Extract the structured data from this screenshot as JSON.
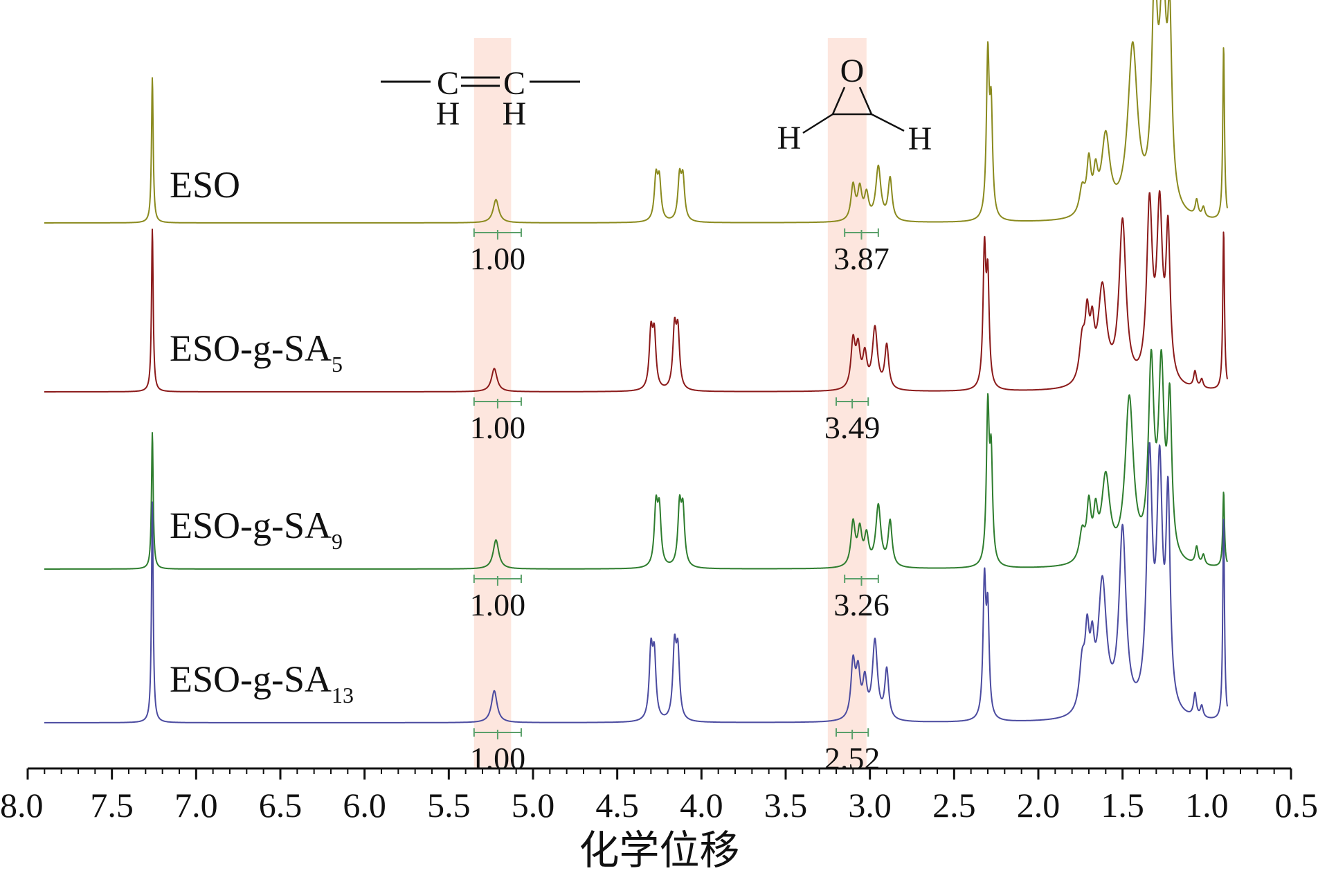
{
  "chart_data": {
    "type": "line",
    "title": "",
    "xlabel": "化学位移",
    "ylabel": "",
    "x_axis": {
      "min": 0.5,
      "max": 8.0,
      "reversed": true,
      "ticks": [
        8.0,
        7.5,
        7.0,
        6.5,
        6.0,
        5.5,
        5.0,
        4.5,
        4.0,
        3.5,
        3.0,
        2.5,
        2.0,
        1.5,
        1.0,
        0.5
      ],
      "tick_labels": [
        "8.0",
        "7.5",
        "7.0",
        "6.5",
        "6.0",
        "5.5",
        "5.0",
        "4.5",
        "4.0",
        "3.5",
        "3.0",
        "2.5",
        "2.0",
        "1.5",
        "1.0",
        "0.5"
      ]
    },
    "grid": false,
    "legend": "none",
    "highlight_bands": [
      {
        "from": 5.13,
        "to": 5.35,
        "color": "#fde6de"
      },
      {
        "from": 3.02,
        "to": 3.25,
        "color": "#fde6de"
      }
    ],
    "structures": [
      {
        "name": "vinyl",
        "atoms": [
          "C",
          "C",
          "H",
          "H"
        ]
      },
      {
        "name": "epoxide",
        "atoms": [
          "O",
          "H",
          "H"
        ]
      }
    ],
    "series": [
      {
        "name": "ESO",
        "label_main": "ESO",
        "label_sub": "",
        "color": "#8a8a1e",
        "x_start": 7.9,
        "x_end": 0.88,
        "peaks": [
          [
            7.26,
            5.0,
            0.006
          ],
          [
            5.22,
            0.8,
            0.02
          ],
          [
            4.27,
            1.45,
            0.012
          ],
          [
            4.25,
            1.35,
            0.012
          ],
          [
            4.13,
            1.45,
            0.012
          ],
          [
            4.11,
            1.4,
            0.012
          ],
          [
            3.1,
            1.2,
            0.015
          ],
          [
            3.06,
            1.05,
            0.015
          ],
          [
            3.02,
            0.85,
            0.015
          ],
          [
            2.95,
            1.85,
            0.018
          ],
          [
            2.88,
            1.45,
            0.014
          ],
          [
            2.3,
            5.5,
            0.01
          ],
          [
            2.28,
            3.5,
            0.01
          ],
          [
            1.74,
            0.9,
            0.02
          ],
          [
            1.7,
            1.7,
            0.015
          ],
          [
            1.66,
            1.2,
            0.015
          ],
          [
            1.6,
            2.7,
            0.03
          ],
          [
            1.44,
            5.8,
            0.035
          ],
          [
            1.31,
            7.0,
            0.02
          ],
          [
            1.26,
            7.0,
            0.025
          ],
          [
            1.22,
            5.5,
            0.015
          ],
          [
            1.06,
            0.55,
            0.01
          ],
          [
            1.02,
            0.35,
            0.01
          ],
          [
            0.9,
            6.0,
            0.006
          ]
        ],
        "integrals": [
          {
            "from": 5.35,
            "to": 5.07,
            "value": "1.00"
          },
          {
            "from": 3.15,
            "to": 2.95,
            "value": "3.87"
          }
        ]
      },
      {
        "name": "ESO-g-SA5",
        "label_main": "ESO-g-SA",
        "label_sub": "5",
        "color": "#8b1a1a",
        "x_start": 7.9,
        "x_end": 0.88,
        "peaks": [
          [
            7.26,
            5.6,
            0.006
          ],
          [
            5.23,
            0.8,
            0.02
          ],
          [
            4.3,
            1.9,
            0.012
          ],
          [
            4.28,
            1.8,
            0.012
          ],
          [
            4.16,
            2.0,
            0.012
          ],
          [
            4.14,
            1.9,
            0.012
          ],
          [
            3.1,
            1.6,
            0.015
          ],
          [
            3.07,
            1.3,
            0.015
          ],
          [
            3.03,
            1.1,
            0.015
          ],
          [
            2.97,
            2.1,
            0.018
          ],
          [
            2.9,
            1.5,
            0.014
          ],
          [
            2.32,
            4.6,
            0.01
          ],
          [
            2.3,
            3.6,
            0.01
          ],
          [
            1.74,
            1.4,
            0.02
          ],
          [
            1.71,
            2.0,
            0.015
          ],
          [
            1.68,
            1.6,
            0.015
          ],
          [
            1.62,
            3.3,
            0.03
          ],
          [
            1.5,
            5.6,
            0.025
          ],
          [
            1.34,
            6.0,
            0.02
          ],
          [
            1.28,
            5.8,
            0.02
          ],
          [
            1.23,
            5.0,
            0.015
          ],
          [
            1.07,
            0.55,
            0.01
          ],
          [
            1.03,
            0.3,
            0.01
          ],
          [
            0.9,
            5.5,
            0.006
          ]
        ],
        "integrals": [
          {
            "from": 5.35,
            "to": 5.07,
            "value": "1.00"
          },
          {
            "from": 3.2,
            "to": 3.01,
            "value": "3.49"
          }
        ]
      },
      {
        "name": "ESO-g-SA9",
        "label_main": "ESO-g-SA",
        "label_sub": "9",
        "color": "#2e7d2e",
        "x_start": 7.9,
        "x_end": 0.88,
        "peaks": [
          [
            7.26,
            4.7,
            0.006
          ],
          [
            5.22,
            1.0,
            0.02
          ],
          [
            4.27,
            2.0,
            0.012
          ],
          [
            4.25,
            1.85,
            0.012
          ],
          [
            4.13,
            2.0,
            0.012
          ],
          [
            4.11,
            1.85,
            0.012
          ],
          [
            3.1,
            1.5,
            0.015
          ],
          [
            3.06,
            1.2,
            0.015
          ],
          [
            3.02,
            1.0,
            0.015
          ],
          [
            2.95,
            2.1,
            0.018
          ],
          [
            2.88,
            1.55,
            0.014
          ],
          [
            2.3,
            5.3,
            0.01
          ],
          [
            2.28,
            3.5,
            0.01
          ],
          [
            1.74,
            1.0,
            0.02
          ],
          [
            1.7,
            1.8,
            0.015
          ],
          [
            1.66,
            1.4,
            0.015
          ],
          [
            1.6,
            2.9,
            0.03
          ],
          [
            1.46,
            5.6,
            0.03
          ],
          [
            1.33,
            6.5,
            0.02
          ],
          [
            1.27,
            6.3,
            0.02
          ],
          [
            1.22,
            5.2,
            0.015
          ],
          [
            1.06,
            0.6,
            0.01
          ],
          [
            1.02,
            0.35,
            0.01
          ],
          [
            0.9,
            2.6,
            0.006
          ]
        ],
        "integrals": [
          {
            "from": 5.35,
            "to": 5.07,
            "value": "1.00"
          },
          {
            "from": 3.15,
            "to": 2.95,
            "value": "3.26"
          }
        ]
      },
      {
        "name": "ESO-g-SA13",
        "label_main": "ESO-g-SA",
        "label_sub": "13",
        "color": "#4b4ba0",
        "x_start": 7.9,
        "x_end": 0.88,
        "peaks": [
          [
            7.26,
            7.6,
            0.006
          ],
          [
            5.23,
            1.1,
            0.02
          ],
          [
            4.3,
            2.3,
            0.012
          ],
          [
            4.28,
            2.1,
            0.012
          ],
          [
            4.16,
            2.4,
            0.012
          ],
          [
            4.14,
            2.2,
            0.012
          ],
          [
            3.1,
            1.9,
            0.015
          ],
          [
            3.07,
            1.5,
            0.015
          ],
          [
            3.03,
            1.25,
            0.015
          ],
          [
            2.97,
            2.7,
            0.018
          ],
          [
            2.9,
            1.7,
            0.014
          ],
          [
            2.32,
            4.6,
            0.01
          ],
          [
            2.3,
            3.5,
            0.01
          ],
          [
            1.74,
            1.6,
            0.02
          ],
          [
            1.71,
            2.3,
            0.015
          ],
          [
            1.68,
            1.8,
            0.015
          ],
          [
            1.62,
            4.5,
            0.03
          ],
          [
            1.5,
            6.3,
            0.025
          ],
          [
            1.34,
            8.5,
            0.02
          ],
          [
            1.28,
            8.0,
            0.02
          ],
          [
            1.23,
            7.0,
            0.015
          ],
          [
            1.07,
            0.8,
            0.01
          ],
          [
            1.03,
            0.4,
            0.01
          ],
          [
            0.9,
            7.0,
            0.006
          ]
        ],
        "integrals": [
          {
            "from": 5.35,
            "to": 5.07,
            "value": "1.00"
          },
          {
            "from": 3.2,
            "to": 3.01,
            "value": "2.52"
          }
        ]
      }
    ]
  }
}
